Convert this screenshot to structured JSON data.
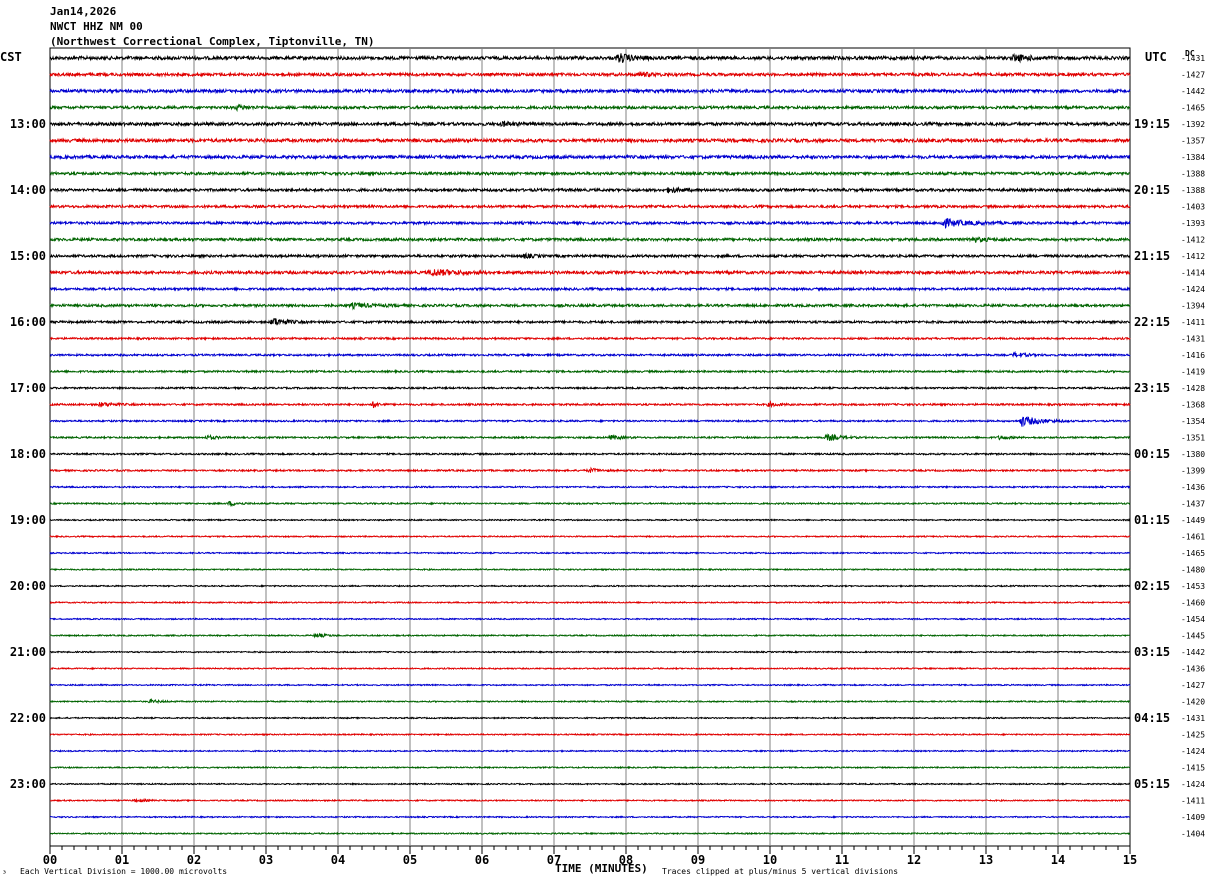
{
  "header": {
    "date": "Jan14,2026",
    "station": "NWCT HHZ NM 00",
    "location": "(Northwest Correctional Complex, Tiptonville, TN)"
  },
  "labels": {
    "left_tz": "CST",
    "right_tz": "UTC",
    "dc_header": "DC",
    "x_axis_title": "TIME (MINUTES)",
    "scale_note": "Each Vertical Division = 1000.00 microvolts",
    "clip_note": "Traces clipped at plus/minus 5 vertical divisions",
    "corner_mark": "³"
  },
  "colors": {
    "cycle": [
      "#000000",
      "#e00000",
      "#0000d0",
      "#006400"
    ],
    "grid": "#808080",
    "frame": "#000000"
  },
  "chart_data": {
    "type": "line",
    "subtype": "helicorder",
    "x_axis": {
      "range": [
        0,
        15
      ],
      "ticks": [
        "00",
        "01",
        "02",
        "03",
        "04",
        "05",
        "06",
        "07",
        "08",
        "09",
        "10",
        "11",
        "12",
        "13",
        "14",
        "15"
      ],
      "title": "TIME (MINUTES)"
    },
    "rows": 48,
    "minutes_per_row": 15,
    "left_hour_labels": [
      "13:00",
      "14:00",
      "15:00",
      "16:00",
      "17:00",
      "18:00",
      "19:00",
      "20:00",
      "21:00",
      "22:00",
      "23:00"
    ],
    "right_hour_labels": [
      "19:15",
      "20:15",
      "21:15",
      "22:15",
      "23:15",
      "00:15",
      "01:15",
      "02:15",
      "03:15",
      "04:15",
      "05:15"
    ],
    "hour_label_first_row": 4,
    "hour_label_every": 4,
    "dc_offsets": [
      -1431,
      -1427,
      -1442,
      -1465,
      -1392,
      -1357,
      -1384,
      -1388,
      -1388,
      -1403,
      -1393,
      -1412,
      -1412,
      -1414,
      -1424,
      -1394,
      -1411,
      -1431,
      -1416,
      -1419,
      -1428,
      -1368,
      -1354,
      -1351,
      -1380,
      -1399,
      -1436,
      -1437,
      -1449,
      -1461,
      -1465,
      -1480,
      -1453,
      -1460,
      -1454,
      -1445,
      -1442,
      -1436,
      -1427,
      -1420,
      -1431,
      -1425,
      -1424,
      -1415,
      -1424,
      -1411,
      -1409,
      -1404
    ],
    "noise_levels": [
      1.6,
      1.4,
      1.5,
      1.3,
      1.5,
      1.6,
      1.5,
      1.3,
      1.3,
      1.2,
      1.2,
      1.3,
      1.2,
      1.4,
      1.1,
      1.2,
      1.1,
      0.9,
      0.9,
      0.9,
      0.8,
      0.9,
      0.8,
      0.8,
      0.8,
      0.8,
      0.7,
      0.7,
      0.6,
      0.6,
      0.6,
      0.6,
      0.6,
      0.6,
      0.6,
      0.6,
      0.6,
      0.6,
      0.6,
      0.6,
      0.6,
      0.6,
      0.6,
      0.6,
      0.6,
      0.6,
      0.6,
      0.6
    ],
    "events": [
      {
        "row": 0,
        "minute": 7.9,
        "amp": 4,
        "dur": 0.6
      },
      {
        "row": 0,
        "minute": 13.4,
        "amp": 3,
        "dur": 0.6
      },
      {
        "row": 1,
        "minute": 8.2,
        "amp": 2,
        "dur": 0.5
      },
      {
        "row": 3,
        "minute": 2.6,
        "amp": 2,
        "dur": 0.5
      },
      {
        "row": 4,
        "minute": 6.3,
        "amp": 2,
        "dur": 0.4
      },
      {
        "row": 8,
        "minute": 8.6,
        "amp": 2.5,
        "dur": 0.4
      },
      {
        "row": 10,
        "minute": 12.4,
        "amp": 4,
        "dur": 0.9
      },
      {
        "row": 11,
        "minute": 12.8,
        "amp": 2,
        "dur": 0.6
      },
      {
        "row": 12,
        "minute": 6.6,
        "amp": 2,
        "dur": 0.3
      },
      {
        "row": 13,
        "minute": 5.3,
        "amp": 3,
        "dur": 1.0
      },
      {
        "row": 15,
        "minute": 4.2,
        "amp": 2,
        "dur": 0.8
      },
      {
        "row": 16,
        "minute": 3.1,
        "amp": 4,
        "dur": 0.5
      },
      {
        "row": 18,
        "minute": 13.4,
        "amp": 2,
        "dur": 0.5
      },
      {
        "row": 21,
        "minute": 0.7,
        "amp": 2,
        "dur": 0.5
      },
      {
        "row": 21,
        "minute": 4.5,
        "amp": 3,
        "dur": 0.2
      },
      {
        "row": 21,
        "minute": 10.0,
        "amp": 2,
        "dur": 0.3
      },
      {
        "row": 22,
        "minute": 13.5,
        "amp": 5,
        "dur": 0.7
      },
      {
        "row": 23,
        "minute": 2.2,
        "amp": 2,
        "dur": 0.3
      },
      {
        "row": 23,
        "minute": 7.8,
        "amp": 2,
        "dur": 0.4
      },
      {
        "row": 23,
        "minute": 10.8,
        "amp": 3,
        "dur": 0.5
      },
      {
        "row": 23,
        "minute": 13.2,
        "amp": 2,
        "dur": 0.3
      },
      {
        "row": 25,
        "minute": 7.5,
        "amp": 2,
        "dur": 0.4
      },
      {
        "row": 27,
        "minute": 2.5,
        "amp": 2,
        "dur": 0.4
      },
      {
        "row": 35,
        "minute": 3.7,
        "amp": 2,
        "dur": 0.4
      },
      {
        "row": 39,
        "minute": 1.4,
        "amp": 1.5,
        "dur": 0.4
      },
      {
        "row": 45,
        "minute": 1.2,
        "amp": 1.5,
        "dur": 0.4
      }
    ]
  }
}
